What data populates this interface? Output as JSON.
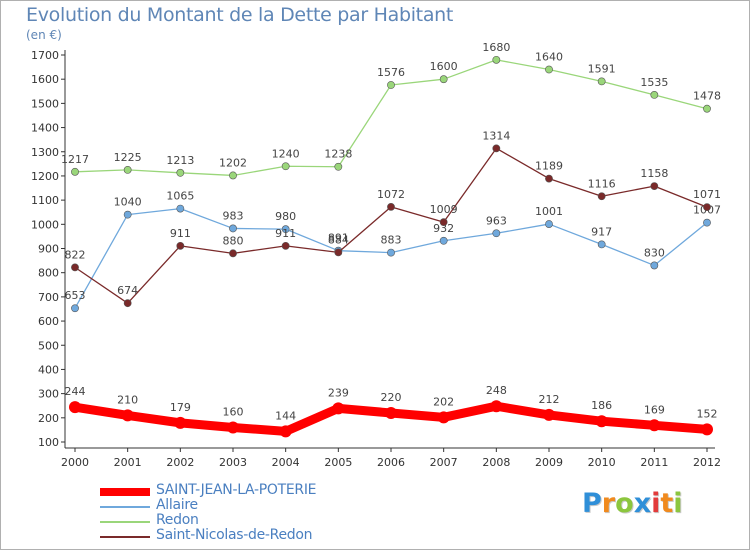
{
  "title": "Evolution du Montant de la Dette par Habitant",
  "unit": "(en €)",
  "logo": {
    "letters": [
      "P",
      "r",
      "o",
      "x",
      "i",
      "t",
      "i"
    ],
    "colors": [
      "#2f8fd8",
      "#f08a1e",
      "#8cc63e",
      "#2f8fd8",
      "#e23b3b",
      "#f08a1e",
      "#8cc63e"
    ]
  },
  "chart_data": {
    "type": "line",
    "x": [
      "2000",
      "2001",
      "2002",
      "2003",
      "2004",
      "2005",
      "2006",
      "2007",
      "2008",
      "2009",
      "2010",
      "2011",
      "2012"
    ],
    "ylim": [
      100,
      1700
    ],
    "yticks": [
      100,
      200,
      300,
      400,
      500,
      600,
      700,
      800,
      900,
      1000,
      1100,
      1200,
      1300,
      1400,
      1500,
      1600,
      1700
    ],
    "grid": false,
    "legend_position": "bottom-left",
    "series": [
      {
        "name": "SAINT-JEAN-LA-POTERIE",
        "color": "#ff0000",
        "values": [
          244,
          210,
          179,
          160,
          144,
          239,
          220,
          202,
          248,
          212,
          186,
          169,
          152
        ]
      },
      {
        "name": "Allaire",
        "color": "#6fa8dc",
        "values": [
          653,
          1040,
          1065,
          983,
          980,
          891,
          883,
          932,
          963,
          1001,
          917,
          830,
          1007
        ]
      },
      {
        "name": "Redon",
        "color": "#9ad67a",
        "values": [
          1217,
          1225,
          1213,
          1202,
          1240,
          1238,
          1576,
          1600,
          1680,
          1640,
          1591,
          1535,
          1478
        ]
      },
      {
        "name": "Saint-Nicolas-de-Redon",
        "color": "#7a2a2a",
        "values": [
          822,
          674,
          911,
          880,
          911,
          884,
          1072,
          1009,
          1314,
          1189,
          1116,
          1158,
          1071
        ]
      }
    ]
  }
}
